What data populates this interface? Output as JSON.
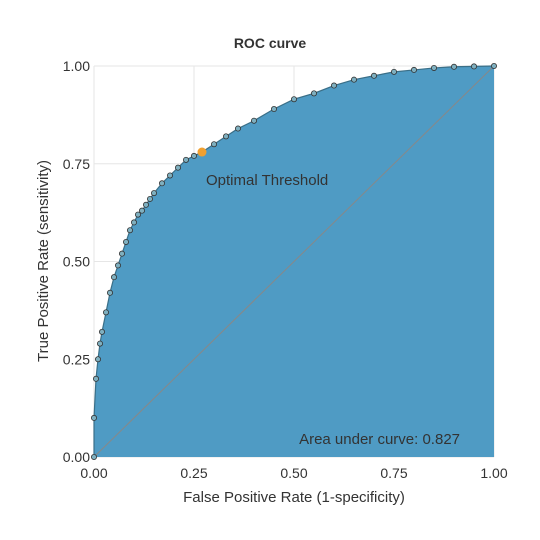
{
  "chart_data": {
    "type": "area",
    "title": "ROC curve",
    "xlabel": "False Positive Rate (1-specificity)",
    "ylabel": "True Positive Rate (sensitivity)",
    "xlim": [
      0,
      1
    ],
    "ylim": [
      0,
      1
    ],
    "x_ticks": [
      "0.00",
      "0.25",
      "0.50",
      "0.75",
      "1.00"
    ],
    "y_ticks": [
      "0.00",
      "0.25",
      "0.50",
      "0.75",
      "1.00"
    ],
    "grid": true,
    "series": [
      {
        "x": [
          0.0,
          0.0,
          0.005,
          0.01,
          0.015,
          0.02,
          0.03,
          0.04,
          0.05,
          0.06,
          0.07,
          0.08,
          0.09,
          0.1,
          0.11,
          0.12,
          0.13,
          0.14,
          0.15,
          0.17,
          0.19,
          0.21,
          0.23,
          0.25,
          0.27,
          0.3,
          0.33,
          0.36,
          0.4,
          0.45,
          0.5,
          0.55,
          0.6,
          0.65,
          0.7,
          0.75,
          0.8,
          0.85,
          0.9,
          0.95,
          1.0
        ],
        "y": [
          0.0,
          0.1,
          0.2,
          0.25,
          0.29,
          0.32,
          0.37,
          0.42,
          0.46,
          0.49,
          0.52,
          0.55,
          0.58,
          0.6,
          0.62,
          0.63,
          0.645,
          0.66,
          0.675,
          0.7,
          0.72,
          0.74,
          0.76,
          0.77,
          0.78,
          0.8,
          0.82,
          0.84,
          0.86,
          0.89,
          0.915,
          0.93,
          0.95,
          0.965,
          0.975,
          0.985,
          0.99,
          0.995,
          0.998,
          0.999,
          1.0
        ]
      }
    ],
    "diagonal": {
      "x": [
        0,
        1
      ],
      "y": [
        0,
        1
      ]
    },
    "optimal_point": {
      "x": 0.27,
      "y": 0.78,
      "label": "Optimal Threshold"
    },
    "auc_label": "Area under curve: 0.827",
    "colors": {
      "fill": "#4f9bc4",
      "marker_fill": "#7fb0c0",
      "marker_stroke": "#333333",
      "optimal": "#f0a030",
      "diagonal": "#888888",
      "grid": "#e6e6e6"
    }
  }
}
